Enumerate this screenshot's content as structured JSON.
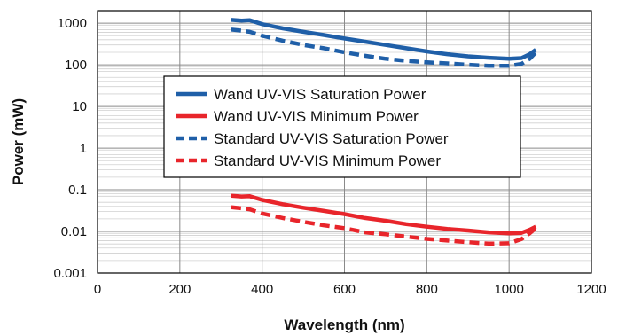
{
  "chart_data": {
    "type": "line",
    "title": "",
    "xlabel": "Wavelength (nm)",
    "ylabel": "Power (mW)",
    "xlim": [
      0,
      1200
    ],
    "ylim": [
      0.001,
      2000
    ],
    "yscale": "log",
    "grid": true,
    "legend_position": "center-left",
    "x_ticks": [
      0,
      200,
      400,
      600,
      800,
      1000,
      1200
    ],
    "x_tick_labels": [
      "0",
      "200",
      "400",
      "600",
      "800",
      "1000",
      "1200"
    ],
    "y_ticks": [
      0.001,
      0.01,
      0.1,
      1,
      10,
      100,
      1000
    ],
    "y_tick_labels": [
      "0.001",
      "0.01",
      "0.1",
      "1",
      "10",
      "100",
      "1000"
    ],
    "series": [
      {
        "name": "Wand UV-VIS Saturation Power",
        "color": "#1f5fa8",
        "dash": "solid",
        "points": [
          [
            325,
            1200
          ],
          [
            350,
            1150
          ],
          [
            370,
            1180
          ],
          [
            400,
            950
          ],
          [
            450,
            750
          ],
          [
            500,
            620
          ],
          [
            550,
            520
          ],
          [
            600,
            430
          ],
          [
            650,
            360
          ],
          [
            700,
            300
          ],
          [
            750,
            250
          ],
          [
            800,
            210
          ],
          [
            850,
            180
          ],
          [
            900,
            160
          ],
          [
            950,
            148
          ],
          [
            1000,
            140
          ],
          [
            1030,
            145
          ],
          [
            1050,
            180
          ],
          [
            1065,
            230
          ]
        ]
      },
      {
        "name": "Wand UV-VIS Minimum Power",
        "color": "#e8252b",
        "dash": "solid",
        "points": [
          [
            325,
            0.072
          ],
          [
            350,
            0.069
          ],
          [
            370,
            0.07
          ],
          [
            400,
            0.057
          ],
          [
            450,
            0.045
          ],
          [
            500,
            0.037
          ],
          [
            550,
            0.031
          ],
          [
            600,
            0.026
          ],
          [
            650,
            0.021
          ],
          [
            700,
            0.018
          ],
          [
            750,
            0.015
          ],
          [
            800,
            0.013
          ],
          [
            850,
            0.0115
          ],
          [
            900,
            0.0105
          ],
          [
            950,
            0.0095
          ],
          [
            1000,
            0.009
          ],
          [
            1030,
            0.0092
          ],
          [
            1050,
            0.011
          ],
          [
            1065,
            0.013
          ]
        ]
      },
      {
        "name": "Standard UV-VIS Saturation Power",
        "color": "#1f5fa8",
        "dash": "dashed",
        "points": [
          [
            325,
            700
          ],
          [
            350,
            660
          ],
          [
            370,
            620
          ],
          [
            400,
            500
          ],
          [
            450,
            380
          ],
          [
            500,
            300
          ],
          [
            550,
            250
          ],
          [
            600,
            200
          ],
          [
            650,
            165
          ],
          [
            700,
            140
          ],
          [
            750,
            125
          ],
          [
            800,
            115
          ],
          [
            850,
            108
          ],
          [
            900,
            100
          ],
          [
            950,
            95
          ],
          [
            1000,
            95
          ],
          [
            1030,
            105
          ],
          [
            1050,
            140
          ],
          [
            1065,
            200
          ]
        ]
      },
      {
        "name": "Standard UV-VIS Minimum Power",
        "color": "#e8252b",
        "dash": "dashed",
        "points": [
          [
            325,
            0.038
          ],
          [
            350,
            0.036
          ],
          [
            370,
            0.034
          ],
          [
            400,
            0.027
          ],
          [
            450,
            0.021
          ],
          [
            500,
            0.017
          ],
          [
            550,
            0.014
          ],
          [
            600,
            0.012
          ],
          [
            650,
            0.0095
          ],
          [
            700,
            0.0085
          ],
          [
            750,
            0.0075
          ],
          [
            800,
            0.0066
          ],
          [
            850,
            0.006
          ],
          [
            900,
            0.0055
          ],
          [
            950,
            0.0051
          ],
          [
            1000,
            0.0052
          ],
          [
            1030,
            0.0065
          ],
          [
            1050,
            0.009
          ],
          [
            1065,
            0.012
          ]
        ]
      }
    ]
  }
}
